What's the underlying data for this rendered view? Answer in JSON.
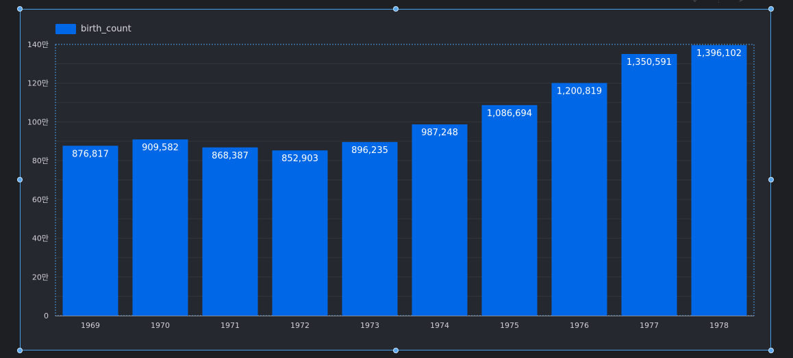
{
  "colors": {
    "bar": "#0068e6",
    "selection": "#4a9ee8",
    "grid": "#34363d",
    "axis_text": "#cfd1d6",
    "bar_label": "#ffffff"
  },
  "toolbar_icons": [
    "move-icon",
    "more-icon",
    "pointer-icon"
  ],
  "chart_data": {
    "type": "bar",
    "categories": [
      "1969",
      "1970",
      "1971",
      "1972",
      "1973",
      "1974",
      "1975",
      "1976",
      "1977",
      "1978"
    ],
    "series": [
      {
        "name": "birth_count",
        "values": [
          876817,
          909582,
          868387,
          852903,
          896235,
          987248,
          1086694,
          1200819,
          1350591,
          1396102
        ],
        "value_labels": [
          "876,817",
          "909,582",
          "868,387",
          "852,903",
          "896,235",
          "987,248",
          "1,086,694",
          "1,200,819",
          "1,350,591",
          "1,396,102"
        ]
      }
    ],
    "ylim": [
      0,
      1400000
    ],
    "y_ticks": [
      0,
      200000,
      400000,
      600000,
      800000,
      1000000,
      1200000,
      1400000
    ],
    "y_tick_labels": [
      "0",
      "20만",
      "40만",
      "60만",
      "80만",
      "100만",
      "120만",
      "140만"
    ],
    "grid": true,
    "legend": "top-left",
    "xlabel": "",
    "ylabel": ""
  }
}
